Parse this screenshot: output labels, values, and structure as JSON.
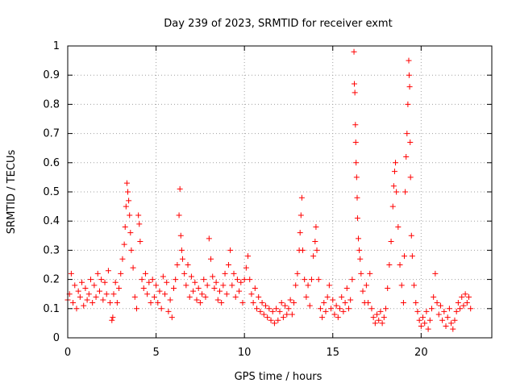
{
  "chart_data": {
    "type": "scatter",
    "title": "Day 239 of 2023, SRMTID for receiver exmt",
    "xlabel": "GPS time / hours",
    "ylabel": "SRMTID / TECUs",
    "xlim": [
      0,
      24
    ],
    "ylim": [
      0,
      1
    ],
    "x_ticks": [
      0,
      5,
      10,
      15,
      20
    ],
    "x_tick_labels": [
      "0",
      "5",
      "10",
      "15",
      "20"
    ],
    "y_ticks": [
      0,
      0.1,
      0.2,
      0.3,
      0.4,
      0.5,
      0.6,
      0.7,
      0.8,
      0.9,
      1
    ],
    "y_tick_labels": [
      "0",
      "0.1",
      "0.2",
      "0.3",
      "0.4",
      "0.5",
      "0.6",
      "0.7",
      "0.8",
      "0.9",
      "1"
    ],
    "grid": true,
    "legend": "none",
    "marker": "plus",
    "series": [
      {
        "name": "SRMTID",
        "color": "#ff0000",
        "points": [
          [
            0.0,
            0.13
          ],
          [
            0.1,
            0.15
          ],
          [
            0.2,
            0.22
          ],
          [
            0.3,
            0.12
          ],
          [
            0.4,
            0.18
          ],
          [
            0.5,
            0.1
          ],
          [
            0.6,
            0.16
          ],
          [
            0.7,
            0.14
          ],
          [
            0.8,
            0.19
          ],
          [
            0.9,
            0.11
          ],
          [
            1.0,
            0.17
          ],
          [
            1.1,
            0.13
          ],
          [
            1.2,
            0.15
          ],
          [
            1.3,
            0.2
          ],
          [
            1.4,
            0.12
          ],
          [
            1.5,
            0.18
          ],
          [
            1.6,
            0.14
          ],
          [
            1.7,
            0.22
          ],
          [
            1.8,
            0.16
          ],
          [
            1.9,
            0.2
          ],
          [
            2.0,
            0.13
          ],
          [
            2.1,
            0.19
          ],
          [
            2.2,
            0.15
          ],
          [
            2.3,
            0.23
          ],
          [
            2.4,
            0.12
          ],
          [
            2.5,
            0.06
          ],
          [
            2.55,
            0.07
          ],
          [
            2.6,
            0.15
          ],
          [
            2.7,
            0.19
          ],
          [
            2.8,
            0.12
          ],
          [
            2.9,
            0.17
          ],
          [
            3.0,
            0.22
          ],
          [
            3.1,
            0.27
          ],
          [
            3.2,
            0.32
          ],
          [
            3.25,
            0.38
          ],
          [
            3.3,
            0.45
          ],
          [
            3.35,
            0.53
          ],
          [
            3.4,
            0.5
          ],
          [
            3.45,
            0.47
          ],
          [
            3.5,
            0.42
          ],
          [
            3.55,
            0.36
          ],
          [
            3.6,
            0.3
          ],
          [
            3.7,
            0.24
          ],
          [
            3.8,
            0.14
          ],
          [
            3.9,
            0.1
          ],
          [
            4.0,
            0.42
          ],
          [
            4.05,
            0.39
          ],
          [
            4.1,
            0.33
          ],
          [
            4.2,
            0.2
          ],
          [
            4.3,
            0.17
          ],
          [
            4.4,
            0.22
          ],
          [
            4.5,
            0.15
          ],
          [
            4.6,
            0.19
          ],
          [
            4.7,
            0.12
          ],
          [
            4.8,
            0.2
          ],
          [
            4.9,
            0.14
          ],
          [
            5.0,
            0.18
          ],
          [
            5.1,
            0.12
          ],
          [
            5.2,
            0.16
          ],
          [
            5.3,
            0.1
          ],
          [
            5.4,
            0.21
          ],
          [
            5.5,
            0.15
          ],
          [
            5.6,
            0.19
          ],
          [
            5.7,
            0.09
          ],
          [
            5.8,
            0.13
          ],
          [
            5.9,
            0.07
          ],
          [
            6.0,
            0.17
          ],
          [
            6.1,
            0.2
          ],
          [
            6.2,
            0.25
          ],
          [
            6.3,
            0.42
          ],
          [
            6.35,
            0.51
          ],
          [
            6.4,
            0.35
          ],
          [
            6.45,
            0.3
          ],
          [
            6.5,
            0.27
          ],
          [
            6.6,
            0.22
          ],
          [
            6.7,
            0.18
          ],
          [
            6.8,
            0.25
          ],
          [
            6.9,
            0.14
          ],
          [
            7.0,
            0.21
          ],
          [
            7.1,
            0.16
          ],
          [
            7.2,
            0.19
          ],
          [
            7.3,
            0.13
          ],
          [
            7.4,
            0.17
          ],
          [
            7.5,
            0.12
          ],
          [
            7.6,
            0.15
          ],
          [
            7.7,
            0.2
          ],
          [
            7.8,
            0.14
          ],
          [
            7.9,
            0.18
          ],
          [
            8.0,
            0.34
          ],
          [
            8.1,
            0.27
          ],
          [
            8.2,
            0.21
          ],
          [
            8.3,
            0.17
          ],
          [
            8.4,
            0.19
          ],
          [
            8.5,
            0.13
          ],
          [
            8.6,
            0.16
          ],
          [
            8.7,
            0.12
          ],
          [
            8.8,
            0.18
          ],
          [
            8.9,
            0.22
          ],
          [
            9.0,
            0.15
          ],
          [
            9.1,
            0.25
          ],
          [
            9.2,
            0.3
          ],
          [
            9.3,
            0.18
          ],
          [
            9.4,
            0.22
          ],
          [
            9.5,
            0.14
          ],
          [
            9.6,
            0.2
          ],
          [
            9.7,
            0.16
          ],
          [
            9.8,
            0.19
          ],
          [
            9.9,
            0.12
          ],
          [
            10.0,
            0.2
          ],
          [
            10.1,
            0.24
          ],
          [
            10.2,
            0.28
          ],
          [
            10.3,
            0.2
          ],
          [
            10.4,
            0.15
          ],
          [
            10.5,
            0.12
          ],
          [
            10.6,
            0.17
          ],
          [
            10.7,
            0.1
          ],
          [
            10.8,
            0.14
          ],
          [
            10.9,
            0.09
          ],
          [
            11.0,
            0.12
          ],
          [
            11.1,
            0.08
          ],
          [
            11.2,
            0.11
          ],
          [
            11.3,
            0.07
          ],
          [
            11.4,
            0.1
          ],
          [
            11.5,
            0.06
          ],
          [
            11.6,
            0.09
          ],
          [
            11.7,
            0.05
          ],
          [
            11.8,
            0.1
          ],
          [
            11.9,
            0.06
          ],
          [
            12.0,
            0.09
          ],
          [
            12.1,
            0.12
          ],
          [
            12.2,
            0.07
          ],
          [
            12.3,
            0.11
          ],
          [
            12.4,
            0.08
          ],
          [
            12.5,
            0.1
          ],
          [
            12.6,
            0.13
          ],
          [
            12.7,
            0.08
          ],
          [
            12.8,
            0.12
          ],
          [
            12.9,
            0.18
          ],
          [
            13.0,
            0.22
          ],
          [
            13.1,
            0.3
          ],
          [
            13.15,
            0.36
          ],
          [
            13.2,
            0.42
          ],
          [
            13.25,
            0.48
          ],
          [
            13.3,
            0.3
          ],
          [
            13.4,
            0.2
          ],
          [
            13.5,
            0.14
          ],
          [
            13.6,
            0.18
          ],
          [
            13.7,
            0.11
          ],
          [
            13.8,
            0.2
          ],
          [
            13.9,
            0.28
          ],
          [
            14.0,
            0.33
          ],
          [
            14.05,
            0.38
          ],
          [
            14.1,
            0.3
          ],
          [
            14.2,
            0.2
          ],
          [
            14.3,
            0.1
          ],
          [
            14.4,
            0.07
          ],
          [
            14.5,
            0.12
          ],
          [
            14.6,
            0.09
          ],
          [
            14.7,
            0.14
          ],
          [
            14.8,
            0.18
          ],
          [
            14.9,
            0.1
          ],
          [
            15.0,
            0.13
          ],
          [
            15.1,
            0.08
          ],
          [
            15.2,
            0.11
          ],
          [
            15.3,
            0.07
          ],
          [
            15.4,
            0.1
          ],
          [
            15.5,
            0.14
          ],
          [
            15.6,
            0.09
          ],
          [
            15.7,
            0.12
          ],
          [
            15.8,
            0.17
          ],
          [
            15.9,
            0.1
          ],
          [
            16.0,
            0.13
          ],
          [
            16.1,
            0.2
          ],
          [
            16.2,
            0.98
          ],
          [
            16.22,
            0.87
          ],
          [
            16.25,
            0.84
          ],
          [
            16.28,
            0.73
          ],
          [
            16.3,
            0.67
          ],
          [
            16.32,
            0.6
          ],
          [
            16.35,
            0.55
          ],
          [
            16.38,
            0.48
          ],
          [
            16.4,
            0.41
          ],
          [
            16.45,
            0.34
          ],
          [
            16.5,
            0.3
          ],
          [
            16.55,
            0.27
          ],
          [
            16.6,
            0.22
          ],
          [
            16.7,
            0.16
          ],
          [
            16.8,
            0.12
          ],
          [
            16.9,
            0.18
          ],
          [
            17.0,
            0.12
          ],
          [
            17.1,
            0.22
          ],
          [
            17.2,
            0.1
          ],
          [
            17.3,
            0.07
          ],
          [
            17.4,
            0.05
          ],
          [
            17.5,
            0.08
          ],
          [
            17.6,
            0.06
          ],
          [
            17.7,
            0.09
          ],
          [
            17.8,
            0.05
          ],
          [
            17.9,
            0.07
          ],
          [
            18.0,
            0.1
          ],
          [
            18.1,
            0.17
          ],
          [
            18.2,
            0.25
          ],
          [
            18.3,
            0.33
          ],
          [
            18.4,
            0.45
          ],
          [
            18.45,
            0.52
          ],
          [
            18.5,
            0.57
          ],
          [
            18.55,
            0.6
          ],
          [
            18.6,
            0.5
          ],
          [
            18.7,
            0.38
          ],
          [
            18.8,
            0.25
          ],
          [
            18.9,
            0.18
          ],
          [
            19.0,
            0.12
          ],
          [
            19.05,
            0.28
          ],
          [
            19.1,
            0.5
          ],
          [
            19.15,
            0.62
          ],
          [
            19.2,
            0.7
          ],
          [
            19.25,
            0.8
          ],
          [
            19.3,
            0.95
          ],
          [
            19.32,
            0.9
          ],
          [
            19.35,
            0.86
          ],
          [
            19.38,
            0.67
          ],
          [
            19.4,
            0.55
          ],
          [
            19.45,
            0.35
          ],
          [
            19.5,
            0.28
          ],
          [
            19.6,
            0.18
          ],
          [
            19.7,
            0.12
          ],
          [
            19.8,
            0.09
          ],
          [
            19.9,
            0.06
          ],
          [
            20.0,
            0.04
          ],
          [
            20.1,
            0.07
          ],
          [
            20.2,
            0.05
          ],
          [
            20.3,
            0.09
          ],
          [
            20.4,
            0.03
          ],
          [
            20.5,
            0.06
          ],
          [
            20.6,
            0.1
          ],
          [
            20.7,
            0.14
          ],
          [
            20.8,
            0.22
          ],
          [
            20.9,
            0.12
          ],
          [
            21.0,
            0.08
          ],
          [
            21.1,
            0.11
          ],
          [
            21.2,
            0.06
          ],
          [
            21.3,
            0.09
          ],
          [
            21.4,
            0.04
          ],
          [
            21.5,
            0.07
          ],
          [
            21.6,
            0.1
          ],
          [
            21.7,
            0.05
          ],
          [
            21.8,
            0.03
          ],
          [
            21.9,
            0.06
          ],
          [
            22.0,
            0.09
          ],
          [
            22.1,
            0.12
          ],
          [
            22.2,
            0.1
          ],
          [
            22.3,
            0.14
          ],
          [
            22.4,
            0.11
          ],
          [
            22.5,
            0.15
          ],
          [
            22.6,
            0.12
          ],
          [
            22.7,
            0.14
          ],
          [
            22.8,
            0.1
          ]
        ]
      }
    ]
  }
}
